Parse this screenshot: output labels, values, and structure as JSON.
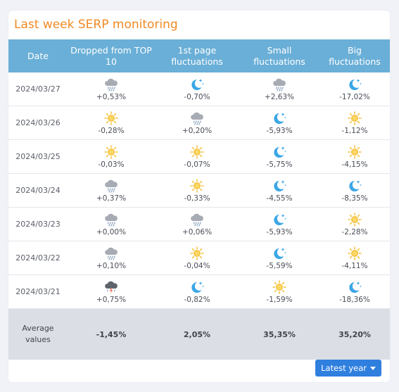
{
  "title": "Last week SERP monitoring",
  "headers": [
    "Date",
    "Dropped from TOP 10",
    "1st page fluctuations",
    "Small fluctuations",
    "Big fluctuations"
  ],
  "rows": [
    {
      "date": "2024/03/27",
      "cells": [
        {
          "icon": "rain-icon",
          "value": "+0,53%"
        },
        {
          "icon": "moon-stars-icon",
          "value": "-0,70%"
        },
        {
          "icon": "rain-icon",
          "value": "+2,63%"
        },
        {
          "icon": "moon-stars-icon",
          "value": "-17,02%"
        }
      ]
    },
    {
      "date": "2024/03/26",
      "cells": [
        {
          "icon": "sun-icon",
          "value": "-0,28%"
        },
        {
          "icon": "rain-icon",
          "value": "+0,20%"
        },
        {
          "icon": "moon-stars-icon",
          "value": "-5,93%"
        },
        {
          "icon": "sun-icon",
          "value": "-1,12%"
        }
      ]
    },
    {
      "date": "2024/03/25",
      "cells": [
        {
          "icon": "sun-icon",
          "value": "-0,03%"
        },
        {
          "icon": "sun-icon",
          "value": "-0,07%"
        },
        {
          "icon": "moon-stars-icon",
          "value": "-5,75%"
        },
        {
          "icon": "sun-icon",
          "value": "-4,15%"
        }
      ]
    },
    {
      "date": "2024/03/24",
      "cells": [
        {
          "icon": "rain-icon",
          "value": "+0,37%"
        },
        {
          "icon": "sun-icon",
          "value": "-0,33%"
        },
        {
          "icon": "moon-stars-icon",
          "value": "-4,55%"
        },
        {
          "icon": "moon-stars-icon",
          "value": "-8,35%"
        }
      ]
    },
    {
      "date": "2024/03/23",
      "cells": [
        {
          "icon": "rain-icon",
          "value": "+0,00%"
        },
        {
          "icon": "rain-icon",
          "value": "+0,06%"
        },
        {
          "icon": "moon-stars-icon",
          "value": "-5,93%"
        },
        {
          "icon": "sun-icon",
          "value": "-2,28%"
        }
      ]
    },
    {
      "date": "2024/03/22",
      "cells": [
        {
          "icon": "rain-icon",
          "value": "+0,10%"
        },
        {
          "icon": "sun-icon",
          "value": "-0,04%"
        },
        {
          "icon": "moon-stars-icon",
          "value": "-5,59%"
        },
        {
          "icon": "sun-icon",
          "value": "-4,11%"
        }
      ]
    },
    {
      "date": "2024/03/21",
      "cells": [
        {
          "icon": "storm-icon",
          "value": "+0,75%"
        },
        {
          "icon": "moon-stars-icon",
          "value": "-0,82%"
        },
        {
          "icon": "sun-icon",
          "value": "-1,59%"
        },
        {
          "icon": "moon-stars-icon",
          "value": "-18,36%"
        }
      ]
    }
  ],
  "average": {
    "label": "Average values",
    "values": [
      "-1,45%",
      "2,05%",
      "35,35%",
      "35,20%"
    ]
  },
  "button": {
    "label": "Latest year"
  },
  "colors": {
    "accent": "#f08a24",
    "header_bg": "#6aafd7",
    "button_bg": "#2f7fdf",
    "sun": "#f6c343",
    "moon": "#3aa6e6",
    "cloud": "#a7abb3"
  }
}
